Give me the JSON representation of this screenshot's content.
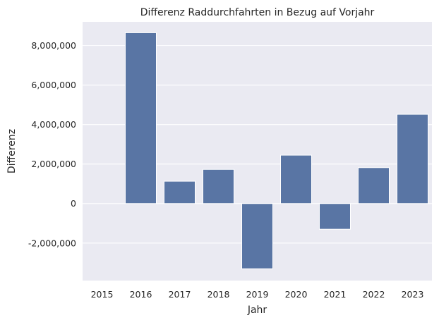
{
  "chart_data": {
    "type": "bar",
    "title": "Differenz Raddurchfahrten in Bezug auf Vorjahr",
    "xlabel": "Jahr",
    "ylabel": "Differenz",
    "categories": [
      "2015",
      "2016",
      "2017",
      "2018",
      "2019",
      "2020",
      "2021",
      "2022",
      "2023"
    ],
    "values": [
      0,
      8650000,
      1130000,
      1730000,
      -3300000,
      2450000,
      -1300000,
      1820000,
      4520000
    ],
    "ylim": [
      -3900000,
      9200000
    ],
    "yticks": [
      -2000000,
      0,
      2000000,
      4000000,
      6000000,
      8000000
    ],
    "ytick_labels": [
      "-2,000,000",
      "0",
      "2,000,000",
      "4,000,000",
      "6,000,000",
      "8,000,000"
    ],
    "grid": true,
    "legend": "none",
    "colors": {
      "bar": "#5975a4",
      "plot_background": "#eaeaf2",
      "grid": "#ffffff",
      "text": "#262626"
    }
  }
}
